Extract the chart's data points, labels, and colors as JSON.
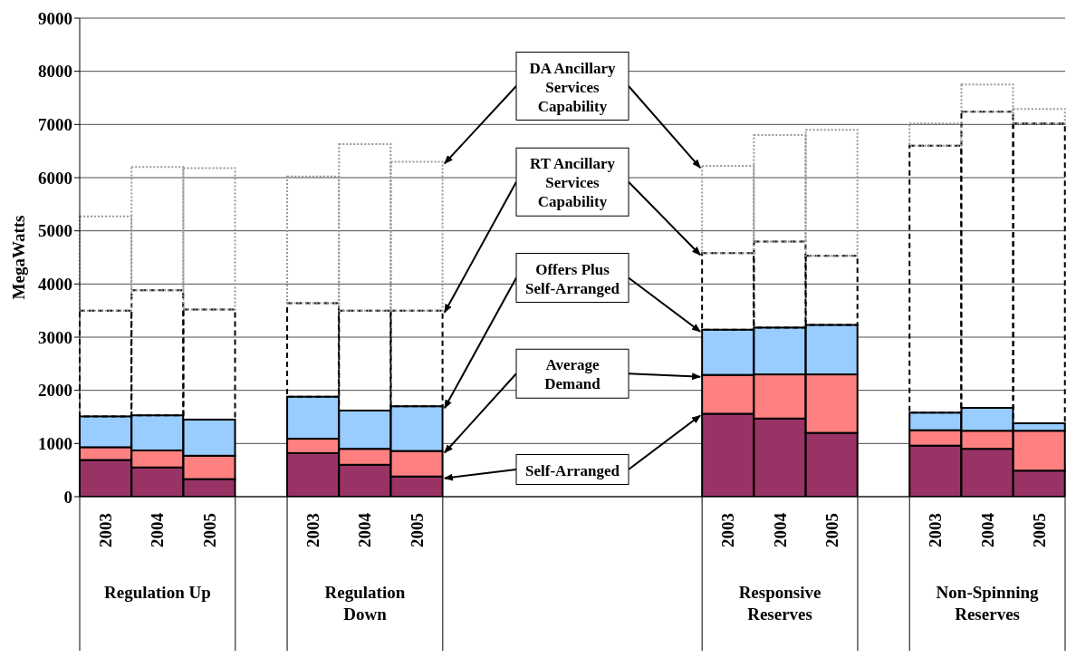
{
  "chart_data": {
    "type": "bar",
    "stacked": true,
    "ylabel": "MegaWatts",
    "categories": [
      "2003",
      "2004",
      "2005",
      null,
      "2003",
      "2004",
      "2005",
      null,
      null,
      null,
      null,
      null,
      "2003",
      "2004",
      "2005",
      null,
      "2003",
      "2004",
      "2005"
    ],
    "series": [
      {
        "name": "Self-Arranged",
        "color": "#993366",
        "values": [
          690,
          550,
          330,
          null,
          820,
          600,
          380,
          null,
          null,
          null,
          null,
          null,
          1560,
          1470,
          1200,
          null,
          960,
          900,
          490
        ]
      },
      {
        "name": "Average Demand",
        "color": "#ff8080",
        "values": [
          240,
          320,
          440,
          null,
          270,
          300,
          480,
          null,
          null,
          null,
          null,
          null,
          730,
          830,
          1100,
          null,
          290,
          340,
          750
        ]
      },
      {
        "name": "Offers Plus Self-Arranged",
        "color": "#99ccff",
        "values": [
          580,
          660,
          680,
          null,
          790,
          720,
          840,
          null,
          null,
          null,
          null,
          null,
          850,
          880,
          930,
          null,
          330,
          430,
          140
        ]
      },
      {
        "name": "RT Ancillary Services Capability",
        "color": "#000000",
        "line_style": "dashed",
        "values": [
          1990,
          2350,
          2070,
          null,
          1760,
          1880,
          1800,
          null,
          null,
          null,
          null,
          null,
          1440,
          1620,
          1300,
          null,
          5020,
          5570,
          5640
        ]
      },
      {
        "name": "DA Ancillary Services Capability",
        "color": "#999999",
        "line_style": "dotted",
        "values": [
          1770,
          2320,
          2660,
          null,
          2380,
          3130,
          2800,
          null,
          null,
          null,
          null,
          null,
          1640,
          2000,
          2370,
          null,
          420,
          510,
          270
        ]
      }
    ],
    "ylim": [
      0,
      9000
    ],
    "yticks": [
      0,
      1000,
      2000,
      3000,
      4000,
      5000,
      6000,
      7000,
      8000,
      9000
    ],
    "grid": "y",
    "annotations": [
      "Regulation Up",
      "Regulation Down",
      "Responsive Reserves",
      "Non-Spinning Reserves"
    ]
  }
}
